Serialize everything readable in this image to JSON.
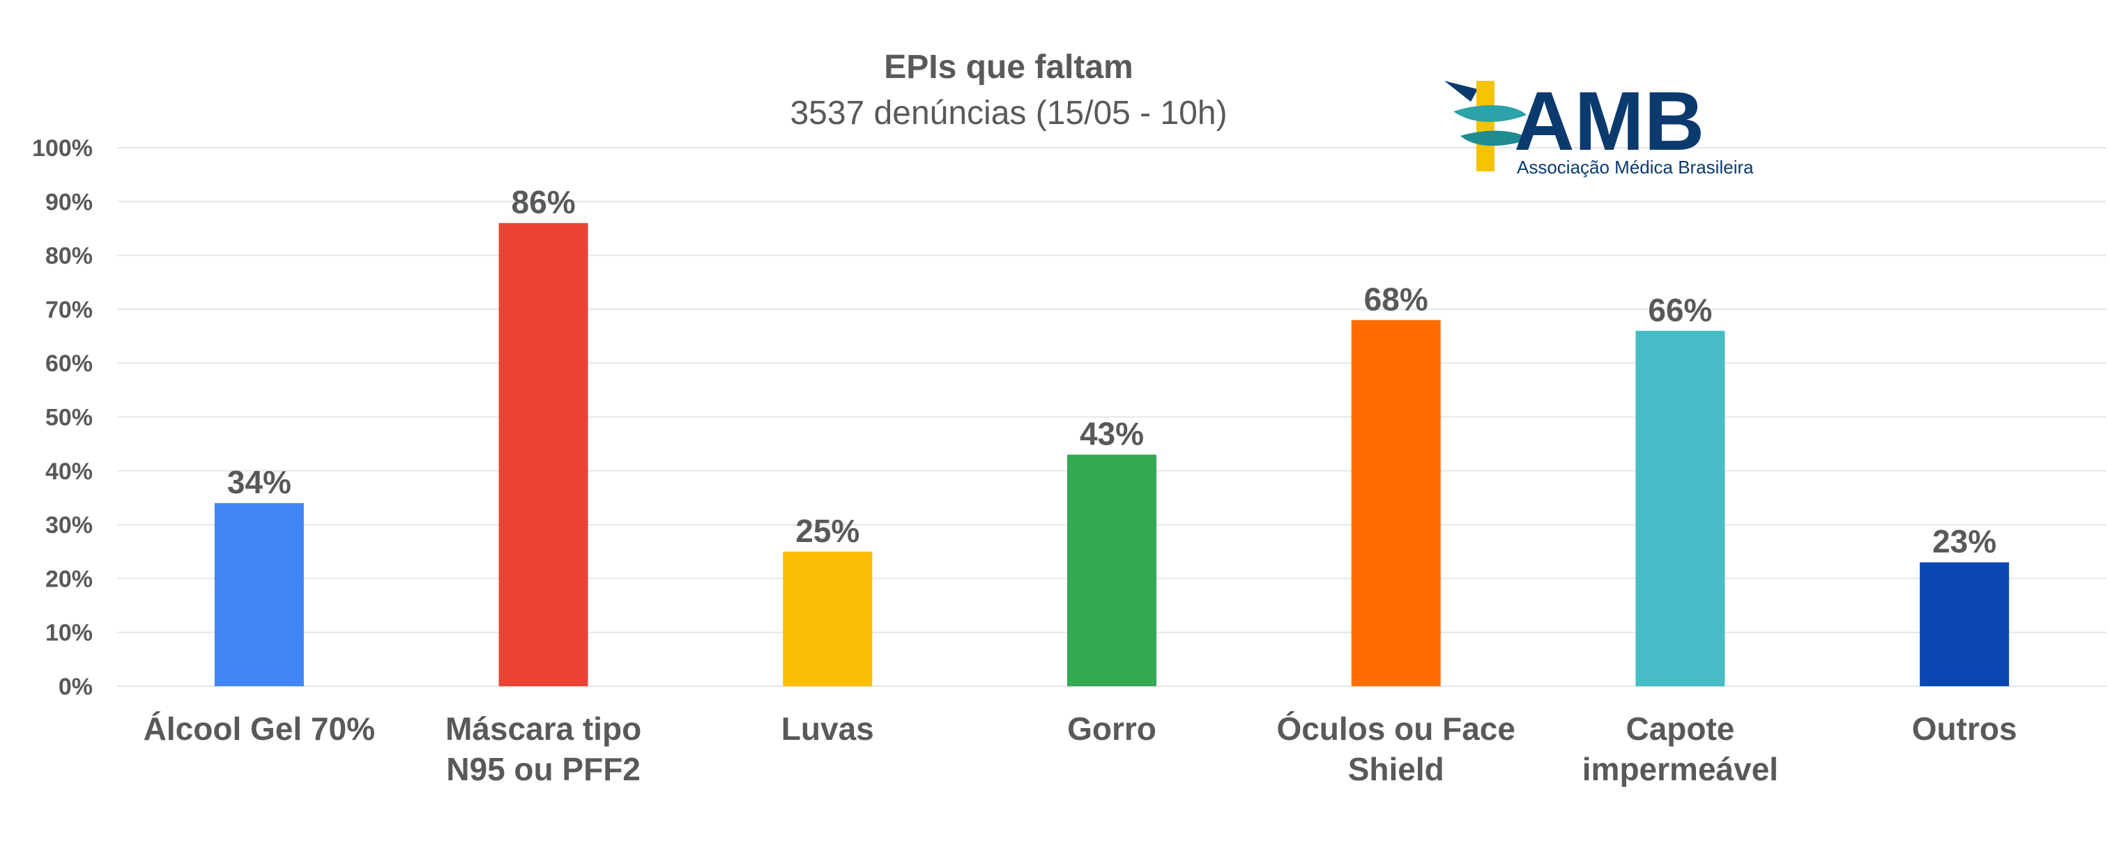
{
  "chart_data": {
    "type": "bar",
    "title": "EPIs que faltam",
    "subtitle": "3537 denúncias (15/05 - 10h)",
    "categories": [
      [
        "Álcool Gel 70%"
      ],
      [
        "Máscara tipo",
        "N95 ou PFF2"
      ],
      [
        "Luvas"
      ],
      [
        "Gorro"
      ],
      [
        "Óculos ou Face",
        "Shield"
      ],
      [
        "Capote",
        "impermeável"
      ],
      [
        "Outros"
      ]
    ],
    "values": [
      34,
      86,
      25,
      43,
      68,
      66,
      23
    ],
    "data_labels": [
      "34%",
      "86%",
      "25%",
      "43%",
      "68%",
      "66%",
      "23%"
    ],
    "colors": [
      "#4285f4",
      "#ea4335",
      "#fbbc04",
      "#34a853",
      "#ff6d01",
      "#46bdc6",
      "#0b47b3"
    ],
    "ylim": [
      0,
      100
    ],
    "yticks": [
      "0%",
      "10%",
      "20%",
      "30%",
      "40%",
      "50%",
      "60%",
      "70%",
      "80%",
      "90%",
      "100%"
    ],
    "grid": true,
    "legend": "none"
  },
  "logo": {
    "name": "AMB",
    "tagline": "Associação Médica Brasileira",
    "icon": "caduceus-icon",
    "color": "#0b3a6e",
    "accent": "#f5c400",
    "ribbon": "#2ba3a8"
  }
}
